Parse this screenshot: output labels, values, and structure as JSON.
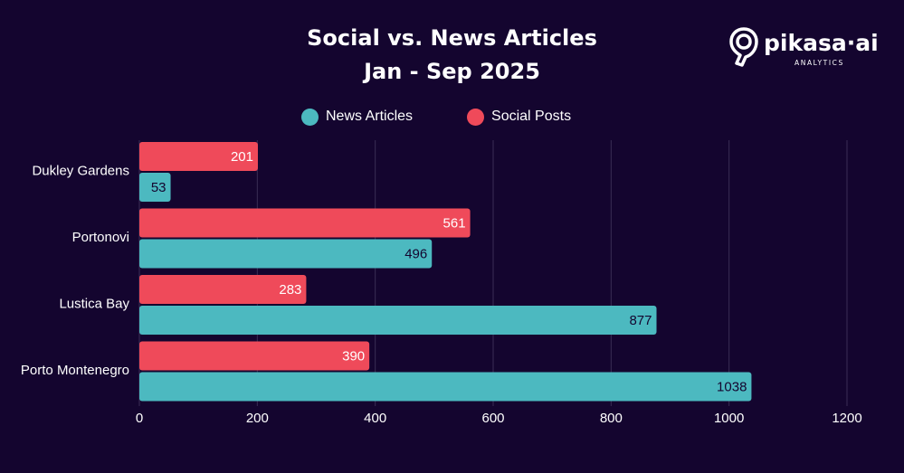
{
  "title_line1": "Social vs. News Articles",
  "title_line2": "Jan - Sep 2025",
  "brand": {
    "name": "pikasa·ai",
    "subtitle": "ANALYTICS",
    "icon": "pin-logo-icon"
  },
  "colors": {
    "background": "#14052f",
    "news": "#4cb9c0",
    "social": "#ef4a5a",
    "grid": "#3a2d55",
    "text": "#ffffff",
    "value_text_social": "#ffffff",
    "value_text_news": "#14052f"
  },
  "legend": {
    "items": [
      {
        "label": "News Articles",
        "color": "#4cb9c0"
      },
      {
        "label": "Social Posts",
        "color": "#ef4a5a"
      }
    ]
  },
  "chart_data": {
    "type": "bar",
    "orientation": "horizontal",
    "categories": [
      "Dukley Gardens",
      "Portonovi",
      "Lustica Bay",
      "Porto Montenegro"
    ],
    "series": [
      {
        "name": "Social Posts",
        "values": [
          201,
          561,
          283,
          390
        ]
      },
      {
        "name": "News Articles",
        "values": [
          53,
          496,
          877,
          1038
        ]
      }
    ],
    "xlim": [
      0,
      1200
    ],
    "xticks": [
      0,
      200,
      400,
      600,
      800,
      1000,
      1200
    ],
    "grid": true,
    "legend_position": "top"
  }
}
